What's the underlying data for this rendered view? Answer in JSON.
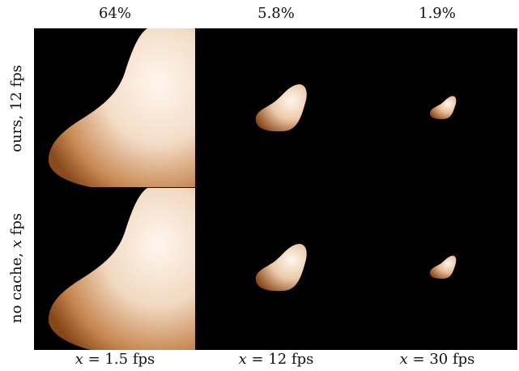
{
  "columns": [
    {
      "coverage": "64%",
      "rate_var": "x",
      "rate_value": "1.5",
      "unit": "fps"
    },
    {
      "coverage": "5.8%",
      "rate_var": "x",
      "rate_value": "12",
      "unit": "fps"
    },
    {
      "coverage": "1.9%",
      "rate_var": "x",
      "rate_value": "30",
      "unit": "fps"
    }
  ],
  "rows": [
    {
      "label_prefix": "ours, 12 fps",
      "label_var": "",
      "label_suffix": ""
    },
    {
      "label_prefix": "no cache, ",
      "label_var": "x",
      "label_suffix": " fps"
    }
  ],
  "colors": {
    "background": "#000000",
    "shape_highlight": "#fff4ea",
    "shape_mid": "#d9a273",
    "shape_shadow": "#7a3c12"
  }
}
